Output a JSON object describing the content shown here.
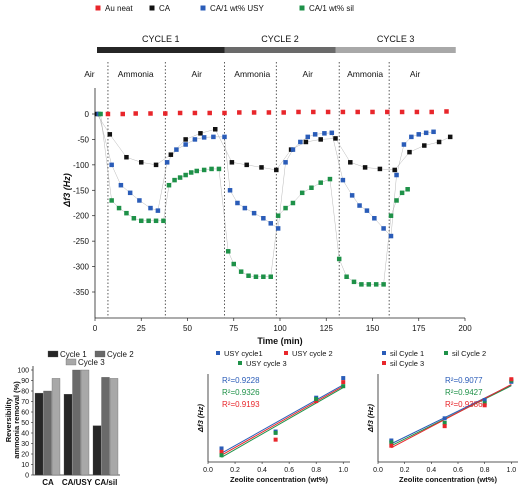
{
  "colors": {
    "red": "#e8262b",
    "black": "#111111",
    "blue": "#2a5cb8",
    "green": "#1e9148",
    "grey": "#8a8a8a",
    "cycle1": "#262626",
    "cycle2": "#6a6a6a",
    "cycle3": "#a8a8a8",
    "r2_blue": "#2a5cb8",
    "r2_green": "#1e9148",
    "r2_red": "#e8262b"
  },
  "chart_data": [
    {
      "id": "main",
      "type": "scatter",
      "title": "",
      "xlabel": "Time (min)",
      "ylabel": "Δf3 (Hz)",
      "xlim": [
        0,
        200
      ],
      "ylim": [
        -350,
        20
      ],
      "xticks": [
        "0",
        "25",
        "50",
        "75",
        "100",
        "125",
        "150",
        "175",
        "200"
      ],
      "yticks": [
        "0",
        "-50",
        "-100",
        "-150",
        "-200",
        "-250",
        "-300",
        "-350"
      ],
      "legend": [
        "Au neat",
        "CA",
        "CA/1 wt% USY",
        "CA/1 wt% sil"
      ],
      "cycles": [
        {
          "label": "CYCLE 1",
          "x0": 0,
          "x1": 70
        },
        {
          "label": "CYCLE 2",
          "x0": 70,
          "x1": 130
        },
        {
          "label": "CYCLE 3",
          "x0": 130,
          "x1": 195
        }
      ],
      "phases": [
        {
          "label": "Air",
          "x": -3
        },
        {
          "label": "Ammonia",
          "x": 22
        },
        {
          "label": "Air",
          "x": 55
        },
        {
          "label": "Ammonia",
          "x": 85
        },
        {
          "label": "Air",
          "x": 115
        },
        {
          "label": "Ammonia",
          "x": 146
        },
        {
          "label": "Air",
          "x": 173
        }
      ],
      "dividers": [
        7,
        38,
        70,
        98,
        132,
        159
      ],
      "series": [
        {
          "name": "Au neat",
          "color_key": "red",
          "points": [
            [
              7,
              0
            ],
            [
              15,
              0
            ],
            [
              22,
              1
            ],
            [
              30,
              1
            ],
            [
              38,
              1
            ],
            [
              46,
              2
            ],
            [
              54,
              2
            ],
            [
              62,
              2
            ],
            [
              70,
              2
            ],
            [
              78,
              3
            ],
            [
              86,
              3
            ],
            [
              94,
              3
            ],
            [
              102,
              3
            ],
            [
              110,
              4
            ],
            [
              118,
              4
            ],
            [
              126,
              4
            ],
            [
              134,
              4
            ],
            [
              142,
              4
            ],
            [
              150,
              4
            ],
            [
              158,
              4
            ],
            [
              166,
              4
            ],
            [
              174,
              4
            ],
            [
              182,
              4
            ],
            [
              190,
              5
            ]
          ]
        },
        {
          "name": "CA",
          "color_key": "black",
          "points": [
            [
              1,
              0
            ],
            [
              8,
              -40
            ],
            [
              17,
              -85
            ],
            [
              25,
              -95
            ],
            [
              33,
              -100
            ],
            [
              41,
              -80
            ],
            [
              49,
              -50
            ],
            [
              57,
              -38
            ],
            [
              65,
              -30
            ],
            [
              74,
              -95
            ],
            [
              82,
              -100
            ],
            [
              90,
              -105
            ],
            [
              98,
              -110
            ],
            [
              106,
              -70
            ],
            [
              114,
              -55
            ],
            [
              122,
              -50
            ],
            [
              130,
              -48
            ],
            [
              138,
              -95
            ],
            [
              146,
              -105
            ],
            [
              154,
              -108
            ],
            [
              162,
              -110
            ],
            [
              170,
              -75
            ],
            [
              178,
              -62
            ],
            [
              186,
              -55
            ],
            [
              192,
              -45
            ]
          ]
        },
        {
          "name": "CA/1 wt% USY",
          "color_key": "blue",
          "points": [
            [
              2,
              0
            ],
            [
              9,
              -100
            ],
            [
              14,
              -140
            ],
            [
              19,
              -155
            ],
            [
              24,
              -170
            ],
            [
              30,
              -185
            ],
            [
              34,
              -190
            ],
            [
              39,
              -95
            ],
            [
              44,
              -70
            ],
            [
              49,
              -60
            ],
            [
              54,
              -50
            ],
            [
              59,
              -46
            ],
            [
              64,
              -45
            ],
            [
              70,
              -45
            ],
            [
              73,
              -150
            ],
            [
              77,
              -175
            ],
            [
              81,
              -185
            ],
            [
              86,
              -195
            ],
            [
              91,
              -205
            ],
            [
              95,
              -215
            ],
            [
              99,
              -225
            ],
            [
              103,
              -95
            ],
            [
              107,
              -70
            ],
            [
              111,
              -55
            ],
            [
              115,
              -45
            ],
            [
              119,
              -40
            ],
            [
              124,
              -38
            ],
            [
              128,
              -37
            ],
            [
              134,
              -130
            ],
            [
              139,
              -160
            ],
            [
              143,
              -180
            ],
            [
              147,
              -190
            ],
            [
              151,
              -205
            ],
            [
              156,
              -225
            ],
            [
              160,
              -240
            ],
            [
              163,
              -120
            ],
            [
              167,
              -60
            ],
            [
              171,
              -45
            ],
            [
              175,
              -40
            ],
            [
              179,
              -37
            ],
            [
              183,
              -35
            ]
          ]
        },
        {
          "name": "CA/1 wt% sil",
          "color_key": "green",
          "points": [
            [
              3,
              0
            ],
            [
              9,
              -170
            ],
            [
              13,
              -185
            ],
            [
              17,
              -195
            ],
            [
              21,
              -205
            ],
            [
              25,
              -210
            ],
            [
              29,
              -210
            ],
            [
              33,
              -210
            ],
            [
              37,
              -210
            ],
            [
              40,
              -140
            ],
            [
              43,
              -130
            ],
            [
              46,
              -125
            ],
            [
              49,
              -120
            ],
            [
              52,
              -115
            ],
            [
              55,
              -112
            ],
            [
              59,
              -110
            ],
            [
              63,
              -108
            ],
            [
              67,
              -108
            ],
            [
              72,
              -270
            ],
            [
              75,
              -295
            ],
            [
              79,
              -310
            ],
            [
              83,
              -318
            ],
            [
              87,
              -320
            ],
            [
              91,
              -320
            ],
            [
              95,
              -320
            ],
            [
              99,
              -200
            ],
            [
              103,
              -185
            ],
            [
              107,
              -175
            ],
            [
              112,
              -155
            ],
            [
              117,
              -145
            ],
            [
              122,
              -135
            ],
            [
              127,
              -128
            ],
            [
              132,
              -285
            ],
            [
              136,
              -320
            ],
            [
              140,
              -330
            ],
            [
              144,
              -335
            ],
            [
              148,
              -335
            ],
            [
              152,
              -335
            ],
            [
              156,
              -335
            ],
            [
              160,
              -200
            ],
            [
              163,
              -170
            ],
            [
              166,
              -155
            ],
            [
              169,
              -148
            ]
          ]
        }
      ]
    },
    {
      "id": "bars",
      "type": "bar",
      "title": "",
      "xlabel": "",
      "ylabel": "Reversibility ammonia removal (%)",
      "ylim": [
        0,
        100
      ],
      "yticks": [
        "0",
        "10",
        "20",
        "30",
        "40",
        "50",
        "60",
        "70",
        "80",
        "90",
        "100"
      ],
      "categories": [
        "CA",
        "CA/USY",
        "CA/sil"
      ],
      "series": [
        {
          "name": "Cycle 1",
          "values": [
            78,
            77,
            47
          ]
        },
        {
          "name": "Cycle 2",
          "values": [
            80,
            100,
            93
          ]
        },
        {
          "name": "Cycle 3",
          "values": [
            92,
            100,
            92
          ]
        }
      ],
      "legend": "top-left"
    },
    {
      "id": "usy",
      "type": "scatter",
      "xlabel": "Zeolite concentration (wt%)",
      "ylabel": "Δf3 (Hz)",
      "xlim": [
        0,
        1.05
      ],
      "ylim": [
        75,
        205
      ],
      "xticks": [
        "0.0",
        "0.2",
        "0.4",
        "0.6",
        "0.8",
        "1.0"
      ],
      "legend": [
        "USY cycle1",
        "USY cycle 2",
        "USY cycle 3"
      ],
      "r2": [
        "R²=0.9228",
        "R²=0.9326",
        "R²=0.9193"
      ],
      "series": [
        {
          "name": "USY cycle1",
          "color_key": "blue",
          "points": [
            [
              0.1,
              95
            ],
            [
              0.5,
              120
            ],
            [
              0.8,
              170
            ],
            [
              1.0,
              199
            ]
          ],
          "fit": [
            [
              0.1,
              88
            ],
            [
              1.0,
              189
            ]
          ]
        },
        {
          "name": "USY cycle 2",
          "color_key": "red",
          "points": [
            [
              0.1,
              90
            ],
            [
              0.5,
              108
            ],
            [
              0.8,
              165
            ],
            [
              1.0,
              193
            ]
          ],
          "fit": [
            [
              0.1,
              85
            ],
            [
              1.0,
              187
            ]
          ]
        },
        {
          "name": "USY cycle 3",
          "color_key": "green",
          "points": [
            [
              0.1,
              85
            ],
            [
              0.5,
              118
            ],
            [
              0.8,
              168
            ],
            [
              1.0,
              187
            ]
          ],
          "fit": [
            [
              0.1,
              82
            ],
            [
              1.0,
              185
            ]
          ]
        }
      ]
    },
    {
      "id": "sil",
      "type": "scatter",
      "xlabel": "Zeolite concentration (wt%)",
      "ylabel": "Δf3 (Hz)",
      "xlim": [
        0,
        1.05
      ],
      "ylim": [
        85,
        220
      ],
      "xticks": [
        "0.0",
        "0.2",
        "0.4",
        "0.6",
        "0.8",
        "1.0"
      ],
      "legend": [
        "sil Cycle 1",
        "sil Cycle 2",
        "sil Cycle 3"
      ],
      "r2": [
        "R²=0.9077",
        "R²=0.9427",
        "R²=0.9386"
      ],
      "series": [
        {
          "name": "sil Cycle 1",
          "color_key": "blue",
          "points": [
            [
              0.1,
              118
            ],
            [
              0.5,
              152
            ],
            [
              0.8,
              180
            ],
            [
              1.0,
              208
            ]
          ],
          "fit": [
            [
              0.1,
              113
            ],
            [
              1.0,
              203
            ]
          ]
        },
        {
          "name": "sil Cycle 2",
          "color_key": "green",
          "points": [
            [
              0.1,
              115
            ],
            [
              0.5,
              145
            ],
            [
              0.8,
              175
            ],
            [
              1.0,
              210
            ]
          ],
          "fit": [
            [
              0.1,
              110
            ],
            [
              1.0,
              202
            ]
          ]
        },
        {
          "name": "sil Cycle 3",
          "color_key": "red",
          "points": [
            [
              0.1,
              110
            ],
            [
              0.5,
              140
            ],
            [
              0.8,
              172
            ],
            [
              1.0,
              212
            ]
          ],
          "fit": [
            [
              0.1,
              107
            ],
            [
              1.0,
              204
            ]
          ]
        }
      ]
    }
  ]
}
